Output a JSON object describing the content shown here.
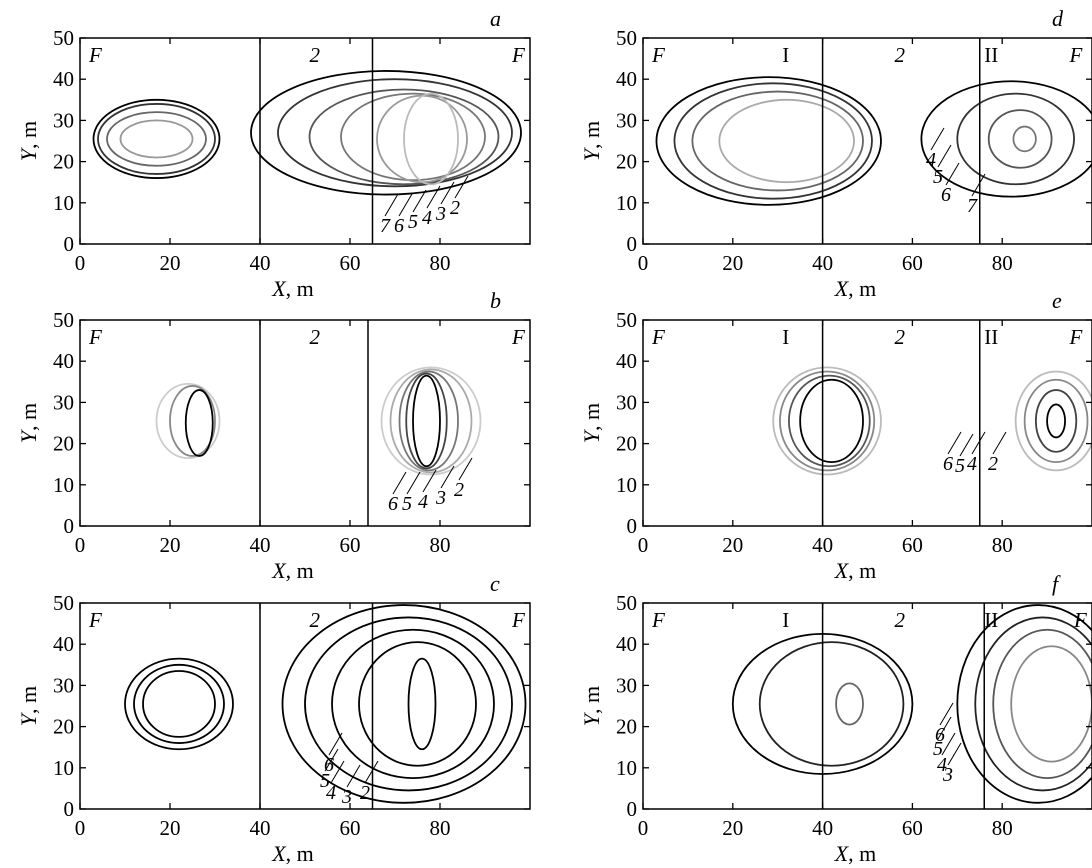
{
  "chart_data": [
    {
      "panel": "a",
      "type": "contour",
      "xlabel_var": "X",
      "xlabel_unit": ", m",
      "ylabel_var": "Y",
      "ylabel_unit": ", m",
      "xlim": [
        0,
        100
      ],
      "ylim": [
        0,
        50
      ],
      "xticks": [
        0,
        20,
        40,
        60,
        80
      ],
      "yticks": [
        0,
        10,
        20,
        30,
        40,
        50
      ],
      "zone_labels": [
        {
          "text": "F",
          "x": 2,
          "italic": true
        },
        {
          "text": "2",
          "x": 51,
          "italic": true
        },
        {
          "text": "F",
          "x": 96,
          "italic": true
        }
      ],
      "boundaries_x": [
        40,
        65
      ],
      "contour_labels": [
        "7",
        "6",
        "5",
        "4",
        "3",
        "2"
      ],
      "contours": [
        {
          "level": "7",
          "color": "#000000",
          "cx": 17,
          "cy": 25.5,
          "rx": 14,
          "ry": 9.5
        },
        {
          "level": "6",
          "color": "#333333",
          "cx": 17,
          "cy": 25.5,
          "rx": 13,
          "ry": 8.5
        },
        {
          "level": "5",
          "color": "#666666",
          "cx": 17,
          "cy": 25.5,
          "rx": 11,
          "ry": 6.5
        },
        {
          "level": "4",
          "color": "#999999",
          "cx": 17,
          "cy": 25.5,
          "rx": 8,
          "ry": 4.5
        },
        {
          "level": "7",
          "color": "#000000",
          "cx": 68,
          "cy": 27,
          "rx": 30,
          "ry": 15
        },
        {
          "level": "6",
          "color": "#333333",
          "cx": 70,
          "cy": 27,
          "rx": 26,
          "ry": 13
        },
        {
          "level": "5",
          "color": "#555555",
          "cx": 72,
          "cy": 26,
          "rx": 21,
          "ry": 11.5
        },
        {
          "level": "4",
          "color": "#777777",
          "cx": 74,
          "cy": 26,
          "rx": 16,
          "ry": 10.5
        },
        {
          "level": "3",
          "color": "#999999",
          "cx": 76,
          "cy": 25.5,
          "rx": 10,
          "ry": 10.5
        },
        {
          "level": "2",
          "color": "#bbbbbb",
          "cx": 78,
          "cy": 25.5,
          "rx": 6,
          "ry": 11
        }
      ]
    },
    {
      "panel": "b",
      "type": "contour",
      "xlabel_var": "X",
      "xlabel_unit": ", m",
      "ylabel_var": "Y",
      "ylabel_unit": ", m",
      "xlim": [
        0,
        100
      ],
      "ylim": [
        0,
        50
      ],
      "xticks": [
        0,
        20,
        40,
        60,
        80
      ],
      "yticks": [
        0,
        10,
        20,
        30,
        40,
        50
      ],
      "zone_labels": [
        {
          "text": "F",
          "x": 2,
          "italic": true
        },
        {
          "text": "2",
          "x": 51,
          "italic": true
        },
        {
          "text": "F",
          "x": 96,
          "italic": true
        }
      ],
      "boundaries_x": [
        40,
        64
      ],
      "contour_labels": [
        "6",
        "5",
        "4",
        "3",
        "2"
      ],
      "contours": [
        {
          "level": "6",
          "color": "#cccccc",
          "cx": 24,
          "cy": 25.5,
          "rx": 7,
          "ry": 9
        },
        {
          "level": "4",
          "color": "#888888",
          "cx": 25,
          "cy": 25.5,
          "rx": 5,
          "ry": 8.5
        },
        {
          "level": "2",
          "color": "#000000",
          "cx": 26.5,
          "cy": 25,
          "rx": 3,
          "ry": 8
        },
        {
          "level": "6",
          "color": "#cccccc",
          "cx": 78,
          "cy": 25.5,
          "rx": 11,
          "ry": 13
        },
        {
          "level": "5",
          "color": "#aaaaaa",
          "cx": 78,
          "cy": 25.5,
          "rx": 9,
          "ry": 12.5
        },
        {
          "level": "4",
          "color": "#777777",
          "cx": 77.5,
          "cy": 25.5,
          "rx": 6.5,
          "ry": 12
        },
        {
          "level": "3",
          "color": "#444444",
          "cx": 77,
          "cy": 25.5,
          "rx": 4.5,
          "ry": 11.5
        },
        {
          "level": "2",
          "color": "#000000",
          "cx": 77,
          "cy": 25.5,
          "rx": 3,
          "ry": 11
        }
      ]
    },
    {
      "panel": "c",
      "type": "contour",
      "xlabel_var": "X",
      "xlabel_unit": ", m",
      "ylabel_var": "Y",
      "ylabel_unit": ", m",
      "xlim": [
        0,
        100
      ],
      "ylim": [
        0,
        50
      ],
      "xticks": [
        0,
        20,
        40,
        60,
        80
      ],
      "yticks": [
        0,
        10,
        20,
        30,
        40,
        50
      ],
      "zone_labels": [
        {
          "text": "F",
          "x": 2,
          "italic": true
        },
        {
          "text": "2",
          "x": 51,
          "italic": true
        },
        {
          "text": "F",
          "x": 96,
          "italic": true
        }
      ],
      "boundaries_x": [
        40,
        65
      ],
      "contour_labels": [
        "6",
        "5",
        "4",
        "3",
        "2"
      ],
      "contours": [
        {
          "level": "6",
          "color": "#000000",
          "cx": 22,
          "cy": 25.5,
          "rx": 12,
          "ry": 11
        },
        {
          "level": "5",
          "color": "#000000",
          "cx": 22,
          "cy": 25.5,
          "rx": 10,
          "ry": 9.5
        },
        {
          "level": "4",
          "color": "#000000",
          "cx": 22,
          "cy": 25.5,
          "rx": 8,
          "ry": 8
        },
        {
          "level": "6",
          "color": "#000000",
          "cx": 72,
          "cy": 25.5,
          "rx": 27,
          "ry": 24
        },
        {
          "level": "5",
          "color": "#000000",
          "cx": 73,
          "cy": 25.5,
          "rx": 23,
          "ry": 21
        },
        {
          "level": "4",
          "color": "#000000",
          "cx": 74,
          "cy": 25.5,
          "rx": 18,
          "ry": 18
        },
        {
          "level": "3",
          "color": "#000000",
          "cx": 75,
          "cy": 25.5,
          "rx": 13,
          "ry": 15
        },
        {
          "level": "2",
          "color": "#000000",
          "cx": 76,
          "cy": 25.5,
          "rx": 3,
          "ry": 11
        }
      ]
    },
    {
      "panel": "d",
      "type": "contour",
      "xlabel_var": "X",
      "xlabel_unit": ", m",
      "ylabel_var": "Y",
      "ylabel_unit": ", m",
      "xlim": [
        0,
        100
      ],
      "ylim": [
        0,
        50
      ],
      "xticks": [
        0,
        20,
        40,
        60,
        80
      ],
      "yticks": [
        0,
        10,
        20,
        30,
        40,
        50
      ],
      "zone_labels": [
        {
          "text": "F",
          "x": 2,
          "italic": true
        },
        {
          "text": "I",
          "x": 31,
          "italic": false
        },
        {
          "text": "2",
          "x": 56,
          "italic": true
        },
        {
          "text": "II",
          "x": 76,
          "italic": false
        },
        {
          "text": "F",
          "x": 95,
          "italic": true
        }
      ],
      "boundaries_x": [
        40,
        75
      ],
      "contour_labels": [
        "4",
        "5",
        "6",
        "7"
      ],
      "contours": [
        {
          "level": "7",
          "color": "#000000",
          "cx": 28,
          "cy": 25,
          "rx": 25,
          "ry": 15.5
        },
        {
          "level": "6",
          "color": "#333333",
          "cx": 29,
          "cy": 25,
          "rx": 22,
          "ry": 14
        },
        {
          "level": "5",
          "color": "#666666",
          "cx": 30,
          "cy": 25,
          "rx": 19,
          "ry": 12
        },
        {
          "level": "4",
          "color": "#aaaaaa",
          "cx": 32,
          "cy": 25,
          "rx": 15,
          "ry": 10
        },
        {
          "level": "7",
          "color": "#000000",
          "cx": 82,
          "cy": 25.5,
          "rx": 20,
          "ry": 14
        },
        {
          "level": "6",
          "color": "#333333",
          "cx": 83,
          "cy": 25.5,
          "rx": 13,
          "ry": 11
        },
        {
          "level": "5",
          "color": "#555555",
          "cx": 84,
          "cy": 25.5,
          "rx": 7,
          "ry": 7
        },
        {
          "level": "4",
          "color": "#777777",
          "cx": 85,
          "cy": 25.5,
          "rx": 2.5,
          "ry": 3
        }
      ]
    },
    {
      "panel": "e",
      "type": "contour",
      "xlabel_var": "X",
      "xlabel_unit": ", m",
      "ylabel_var": "Y",
      "ylabel_unit": ", m",
      "xlim": [
        0,
        100
      ],
      "ylim": [
        0,
        50
      ],
      "xticks": [
        0,
        20,
        40,
        60,
        80
      ],
      "yticks": [
        0,
        10,
        20,
        30,
        40,
        50
      ],
      "zone_labels": [
        {
          "text": "F",
          "x": 2,
          "italic": true
        },
        {
          "text": "I",
          "x": 31,
          "italic": false
        },
        {
          "text": "2",
          "x": 56,
          "italic": true
        },
        {
          "text": "II",
          "x": 76,
          "italic": false
        },
        {
          "text": "F",
          "x": 95,
          "italic": true
        }
      ],
      "boundaries_x": [
        40,
        75
      ],
      "contour_labels": [
        "6",
        "5",
        "4",
        "2"
      ],
      "contours": [
        {
          "level": "6",
          "color": "#bbbbbb",
          "cx": 41,
          "cy": 25.5,
          "rx": 12,
          "ry": 13
        },
        {
          "level": "5",
          "color": "#888888",
          "cx": 41,
          "cy": 25.5,
          "rx": 10.5,
          "ry": 12
        },
        {
          "level": "4",
          "color": "#555555",
          "cx": 41.5,
          "cy": 25.5,
          "rx": 9,
          "ry": 11
        },
        {
          "level": "2",
          "color": "#000000",
          "cx": 42,
          "cy": 25.5,
          "rx": 7,
          "ry": 10
        },
        {
          "level": "6",
          "color": "#bbbbbb",
          "cx": 92,
          "cy": 25.5,
          "rx": 9,
          "ry": 12
        },
        {
          "level": "5",
          "color": "#888888",
          "cx": 92,
          "cy": 25.5,
          "rx": 7,
          "ry": 10
        },
        {
          "level": "4",
          "color": "#444444",
          "cx": 92,
          "cy": 25.5,
          "rx": 4.5,
          "ry": 7.5
        },
        {
          "level": "2",
          "color": "#000000",
          "cx": 92,
          "cy": 25.5,
          "rx": 2,
          "ry": 4
        }
      ]
    },
    {
      "panel": "f",
      "type": "contour",
      "xlabel_var": "X",
      "xlabel_unit": ", m",
      "ylabel_var": "Y",
      "ylabel_unit": ", m",
      "xlim": [
        0,
        100
      ],
      "ylim": [
        0,
        50
      ],
      "xticks": [
        0,
        20,
        40,
        60,
        80
      ],
      "yticks": [
        0,
        10,
        20,
        30,
        40,
        50
      ],
      "zone_labels": [
        {
          "text": "F",
          "x": 2,
          "italic": true
        },
        {
          "text": "I",
          "x": 31,
          "italic": false
        },
        {
          "text": "2",
          "x": 56,
          "italic": true
        },
        {
          "text": "II",
          "x": 76,
          "italic": false
        },
        {
          "text": "F",
          "x": 96,
          "italic": true
        }
      ],
      "boundaries_x": [
        40,
        76
      ],
      "contour_labels": [
        "6",
        "5",
        "4",
        "3"
      ],
      "contours": [
        {
          "level": "6",
          "color": "#000000",
          "cx": 40,
          "cy": 25.5,
          "rx": 20,
          "ry": 17
        },
        {
          "level": "5",
          "color": "#222222",
          "cx": 42,
          "cy": 25.5,
          "rx": 16,
          "ry": 15
        },
        {
          "level": "4",
          "color": "#666666",
          "cx": 46,
          "cy": 25.5,
          "rx": 3,
          "ry": 5
        },
        {
          "level": "6",
          "color": "#000000",
          "cx": 88,
          "cy": 25.5,
          "rx": 18,
          "ry": 24
        },
        {
          "level": "5",
          "color": "#222222",
          "cx": 89,
          "cy": 25.5,
          "rx": 15,
          "ry": 21
        },
        {
          "level": "4",
          "color": "#555555",
          "cx": 90,
          "cy": 25.5,
          "rx": 12,
          "ry": 18
        },
        {
          "level": "3",
          "color": "#888888",
          "cx": 91,
          "cy": 25.5,
          "rx": 9,
          "ry": 14
        }
      ]
    }
  ]
}
